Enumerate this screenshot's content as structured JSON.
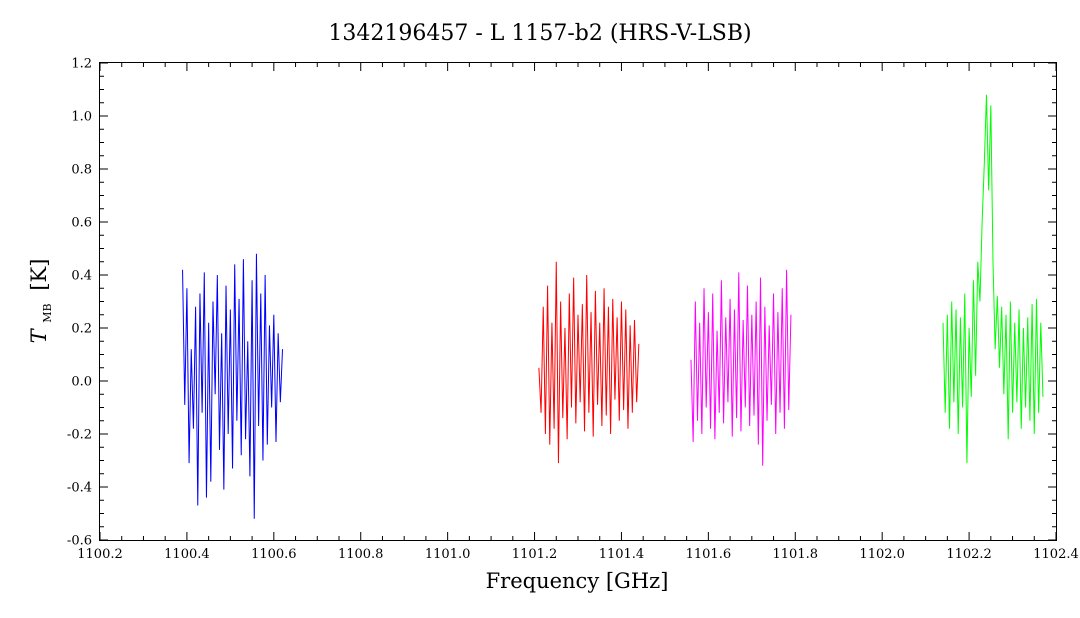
{
  "chart_data": {
    "type": "line",
    "title": "1342196457 - L 1157-b2 (HRS-V-LSB)",
    "xlabel": "Frequency [GHz]",
    "ylabel_main": "T",
    "ylabel_sub": "MB",
    "ylabel_unit": "[K]",
    "xlim": [
      1100.2,
      1102.4
    ],
    "ylim": [
      -0.6,
      1.2
    ],
    "x_ticks": [
      1100.2,
      1100.4,
      1100.6,
      1100.8,
      1101.0,
      1101.2,
      1101.4,
      1101.6,
      1101.8,
      1102.0,
      1102.2,
      1102.4
    ],
    "x_tick_labels": [
      "1100.2",
      "1100.4",
      "1100.6",
      "1100.8",
      "1101.0",
      "1101.2",
      "1101.4",
      "1101.6",
      "1101.8",
      "1102.0",
      "1102.2",
      "1102.4"
    ],
    "y_ticks": [
      -0.6,
      -0.4,
      -0.2,
      0.0,
      0.2,
      0.4,
      0.6,
      0.8,
      1.0,
      1.2
    ],
    "y_tick_labels": [
      "-0.6",
      "-0.4",
      "-0.2",
      "0.0",
      "0.2",
      "0.4",
      "0.6",
      "0.8",
      "1.0",
      "1.2"
    ],
    "grid": false,
    "series": [
      {
        "color": "#0000ff",
        "x": [
          1100.39,
          1100.395,
          1100.4,
          1100.405,
          1100.41,
          1100.415,
          1100.42,
          1100.425,
          1100.43,
          1100.435,
          1100.44,
          1100.445,
          1100.45,
          1100.455,
          1100.46,
          1100.465,
          1100.47,
          1100.475,
          1100.48,
          1100.485,
          1100.49,
          1100.495,
          1100.5,
          1100.505,
          1100.51,
          1100.515,
          1100.52,
          1100.525,
          1100.53,
          1100.535,
          1100.54,
          1100.545,
          1100.55,
          1100.555,
          1100.56,
          1100.565,
          1100.57,
          1100.575,
          1100.58,
          1100.585,
          1100.59,
          1100.595,
          1100.6,
          1100.605,
          1100.61,
          1100.615,
          1100.62
        ],
        "y": [
          0.42,
          -0.09,
          0.35,
          -0.31,
          0.12,
          -0.18,
          0.28,
          -0.47,
          0.33,
          -0.12,
          0.41,
          -0.44,
          0.22,
          -0.38,
          0.3,
          -0.05,
          0.4,
          -0.26,
          0.18,
          -0.41,
          0.36,
          -0.2,
          0.27,
          -0.33,
          0.44,
          -0.15,
          0.31,
          -0.28,
          0.46,
          -0.22,
          0.15,
          -0.36,
          0.38,
          -0.52,
          0.48,
          -0.17,
          0.33,
          -0.3,
          0.4,
          -0.24,
          0.21,
          -0.1,
          0.25,
          -0.23,
          0.18,
          -0.08,
          0.12
        ]
      },
      {
        "color": "#ff0000",
        "x": [
          1101.21,
          1101.215,
          1101.22,
          1101.225,
          1101.23,
          1101.235,
          1101.24,
          1101.245,
          1101.25,
          1101.255,
          1101.26,
          1101.265,
          1101.27,
          1101.275,
          1101.28,
          1101.285,
          1101.29,
          1101.295,
          1101.3,
          1101.305,
          1101.31,
          1101.315,
          1101.32,
          1101.325,
          1101.33,
          1101.335,
          1101.34,
          1101.345,
          1101.35,
          1101.355,
          1101.36,
          1101.365,
          1101.37,
          1101.375,
          1101.38,
          1101.385,
          1101.39,
          1101.395,
          1101.4,
          1101.405,
          1101.41,
          1101.415,
          1101.42,
          1101.425,
          1101.43,
          1101.435,
          1101.44
        ],
        "y": [
          0.05,
          -0.12,
          0.28,
          -0.2,
          0.36,
          -0.24,
          0.22,
          -0.18,
          0.45,
          -0.31,
          0.3,
          -0.14,
          0.2,
          -0.22,
          0.33,
          -0.1,
          0.39,
          -0.16,
          0.25,
          -0.08,
          0.29,
          -0.19,
          0.4,
          -0.12,
          0.26,
          -0.21,
          0.34,
          -0.09,
          0.22,
          -0.17,
          0.35,
          -0.13,
          0.28,
          -0.2,
          0.31,
          -0.07,
          0.24,
          -0.15,
          0.3,
          -0.11,
          0.27,
          -0.18,
          0.21,
          -0.12,
          0.23,
          -0.08,
          0.14
        ]
      },
      {
        "color": "#ff00ff",
        "x": [
          1101.56,
          1101.565,
          1101.57,
          1101.575,
          1101.58,
          1101.585,
          1101.59,
          1101.595,
          1101.6,
          1101.605,
          1101.61,
          1101.615,
          1101.62,
          1101.625,
          1101.63,
          1101.635,
          1101.64,
          1101.645,
          1101.65,
          1101.655,
          1101.66,
          1101.665,
          1101.67,
          1101.675,
          1101.68,
          1101.685,
          1101.69,
          1101.695,
          1101.7,
          1101.705,
          1101.71,
          1101.715,
          1101.72,
          1101.725,
          1101.73,
          1101.735,
          1101.74,
          1101.745,
          1101.75,
          1101.755,
          1101.76,
          1101.765,
          1101.77,
          1101.775,
          1101.78,
          1101.785,
          1101.79
        ],
        "y": [
          0.08,
          -0.23,
          0.3,
          -0.15,
          0.22,
          -0.2,
          0.35,
          -0.1,
          0.26,
          -0.18,
          0.33,
          -0.22,
          0.19,
          -0.12,
          0.38,
          -0.16,
          0.24,
          -0.08,
          0.31,
          -0.21,
          0.27,
          -0.14,
          0.41,
          -0.19,
          0.23,
          -0.1,
          0.36,
          -0.17,
          0.25,
          -0.13,
          0.3,
          -0.24,
          0.39,
          -0.32,
          0.28,
          -0.15,
          0.21,
          -0.09,
          0.33,
          -0.2,
          0.26,
          -0.12,
          0.35,
          -0.18,
          0.42,
          -0.11,
          0.25
        ]
      },
      {
        "color": "#00ff00",
        "x": [
          1102.14,
          1102.145,
          1102.15,
          1102.155,
          1102.16,
          1102.165,
          1102.17,
          1102.175,
          1102.18,
          1102.185,
          1102.19,
          1102.195,
          1102.2,
          1102.205,
          1102.21,
          1102.215,
          1102.22,
          1102.225,
          1102.23,
          1102.235,
          1102.24,
          1102.245,
          1102.25,
          1102.255,
          1102.26,
          1102.265,
          1102.27,
          1102.275,
          1102.28,
          1102.285,
          1102.29,
          1102.295,
          1102.3,
          1102.305,
          1102.31,
          1102.315,
          1102.32,
          1102.325,
          1102.33,
          1102.335,
          1102.34,
          1102.345,
          1102.35,
          1102.355,
          1102.36,
          1102.365,
          1102.37
        ],
        "y": [
          0.22,
          -0.12,
          0.25,
          -0.18,
          0.3,
          -0.08,
          0.27,
          -0.2,
          0.24,
          -0.1,
          0.33,
          -0.31,
          0.2,
          -0.06,
          0.38,
          0.02,
          0.45,
          0.3,
          0.6,
          0.82,
          1.08,
          0.72,
          1.04,
          0.45,
          0.12,
          0.32,
          0.05,
          0.28,
          -0.05,
          0.25,
          -0.22,
          0.3,
          -0.12,
          0.22,
          -0.08,
          0.27,
          -0.18,
          0.2,
          -0.1,
          0.24,
          -0.15,
          0.29,
          -0.2,
          0.31,
          -0.12,
          0.22,
          -0.06
        ]
      }
    ]
  }
}
